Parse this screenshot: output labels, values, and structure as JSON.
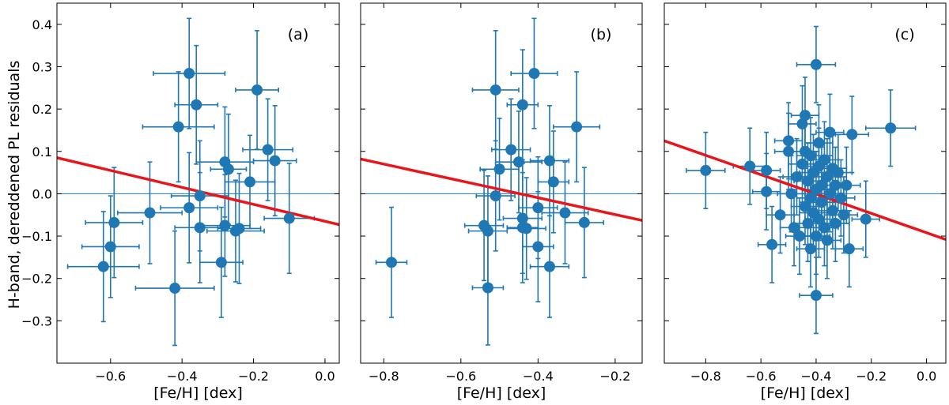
{
  "chart_data": [
    {
      "type": "scatter",
      "panel_label": "(a)",
      "xlabel": "[Fe/H] [dex]",
      "ylabel": "H-band, dereddened PL residuals",
      "xlim": [
        -0.75,
        0.04
      ],
      "ylim": [
        -0.4,
        0.45
      ],
      "xticks": [
        -0.6,
        -0.4,
        -0.2,
        0.0
      ],
      "xtick_labels": [
        "−0.6",
        "−0.4",
        "−0.2",
        "0.0"
      ],
      "yticks": [
        -0.3,
        -0.2,
        -0.1,
        0.0,
        0.1,
        0.2,
        0.3,
        0.4
      ],
      "ytick_labels": [
        "−0.3",
        "−0.2",
        "−0.1",
        "0.0",
        "0.1",
        "0.2",
        "0.3",
        "0.4"
      ],
      "show_ytick_labels": true,
      "zero_line": 0.0,
      "fit_line": {
        "x": [
          -0.75,
          0.04
        ],
        "y": [
          0.085,
          -0.073
        ]
      },
      "points": [
        {
          "x": -0.62,
          "y": -0.172,
          "xerr": 0.1,
          "yerr": 0.13
        },
        {
          "x": -0.6,
          "y": -0.125,
          "xerr": 0.08,
          "yerr": 0.12
        },
        {
          "x": -0.59,
          "y": -0.068,
          "xerr": 0.08,
          "yerr": 0.13
        },
        {
          "x": -0.49,
          "y": -0.045,
          "xerr": 0.09,
          "yerr": 0.12
        },
        {
          "x": -0.42,
          "y": -0.223,
          "xerr": 0.11,
          "yerr": 0.135
        },
        {
          "x": -0.41,
          "y": 0.158,
          "xerr": 0.1,
          "yerr": 0.13
        },
        {
          "x": -0.38,
          "y": 0.284,
          "xerr": 0.1,
          "yerr": 0.13
        },
        {
          "x": -0.38,
          "y": -0.033,
          "xerr": 0.08,
          "yerr": 0.13
        },
        {
          "x": -0.36,
          "y": 0.21,
          "xerr": 0.06,
          "yerr": 0.14
        },
        {
          "x": -0.35,
          "y": -0.005,
          "xerr": 0.08,
          "yerr": 0.13
        },
        {
          "x": -0.35,
          "y": -0.08,
          "xerr": 0.07,
          "yerr": 0.13
        },
        {
          "x": -0.29,
          "y": -0.162,
          "xerr": 0.06,
          "yerr": 0.13
        },
        {
          "x": -0.28,
          "y": 0.075,
          "xerr": 0.08,
          "yerr": 0.13
        },
        {
          "x": -0.28,
          "y": -0.075,
          "xerr": 0.07,
          "yerr": 0.12
        },
        {
          "x": -0.27,
          "y": 0.058,
          "xerr": 0.05,
          "yerr": 0.13
        },
        {
          "x": -0.25,
          "y": -0.088,
          "xerr": 0.08,
          "yerr": 0.12
        },
        {
          "x": -0.24,
          "y": -0.082,
          "xerr": 0.06,
          "yerr": 0.13
        },
        {
          "x": -0.21,
          "y": 0.028,
          "xerr": 0.07,
          "yerr": 0.11
        },
        {
          "x": -0.19,
          "y": 0.245,
          "xerr": 0.06,
          "yerr": 0.14
        },
        {
          "x": -0.16,
          "y": 0.104,
          "xerr": 0.07,
          "yerr": 0.12
        },
        {
          "x": -0.14,
          "y": 0.078,
          "xerr": 0.06,
          "yerr": 0.13
        },
        {
          "x": -0.1,
          "y": -0.058,
          "xerr": 0.07,
          "yerr": 0.13
        }
      ]
    },
    {
      "type": "scatter",
      "panel_label": "(b)",
      "xlabel": "[Fe/H] [dex]",
      "ylabel": "",
      "xlim": [
        -0.86,
        -0.13
      ],
      "ylim": [
        -0.4,
        0.45
      ],
      "xticks": [
        -0.8,
        -0.6,
        -0.4,
        -0.2
      ],
      "xtick_labels": [
        "−0.8",
        "−0.6",
        "−0.4",
        "−0.2"
      ],
      "yticks": [
        -0.3,
        -0.2,
        -0.1,
        0.0,
        0.1,
        0.2,
        0.3,
        0.4
      ],
      "ytick_labels": [],
      "show_ytick_labels": false,
      "zero_line": 0.0,
      "fit_line": {
        "x": [
          -0.86,
          -0.13
        ],
        "y": [
          0.082,
          -0.063
        ]
      },
      "points": [
        {
          "x": -0.78,
          "y": -0.162,
          "xerr": 0.04,
          "yerr": 0.13
        },
        {
          "x": -0.54,
          "y": -0.075,
          "xerr": 0.05,
          "yerr": 0.13
        },
        {
          "x": -0.53,
          "y": -0.088,
          "xerr": 0.05,
          "yerr": 0.13
        },
        {
          "x": -0.53,
          "y": -0.222,
          "xerr": 0.04,
          "yerr": 0.135
        },
        {
          "x": -0.51,
          "y": 0.245,
          "xerr": 0.06,
          "yerr": 0.14
        },
        {
          "x": -0.51,
          "y": -0.005,
          "xerr": 0.05,
          "yerr": 0.13
        },
        {
          "x": -0.5,
          "y": 0.058,
          "xerr": 0.05,
          "yerr": 0.12
        },
        {
          "x": -0.47,
          "y": 0.104,
          "xerr": 0.05,
          "yerr": 0.12
        },
        {
          "x": -0.45,
          "y": 0.075,
          "xerr": 0.06,
          "yerr": 0.12
        },
        {
          "x": -0.44,
          "y": 0.21,
          "xerr": 0.04,
          "yerr": 0.13
        },
        {
          "x": -0.44,
          "y": -0.058,
          "xerr": 0.05,
          "yerr": 0.13
        },
        {
          "x": -0.44,
          "y": -0.08,
          "xerr": 0.04,
          "yerr": 0.13
        },
        {
          "x": -0.43,
          "y": -0.082,
          "xerr": 0.05,
          "yerr": 0.12
        },
        {
          "x": -0.41,
          "y": 0.284,
          "xerr": 0.06,
          "yerr": 0.13
        },
        {
          "x": -0.4,
          "y": -0.033,
          "xerr": 0.05,
          "yerr": 0.12
        },
        {
          "x": -0.4,
          "y": -0.125,
          "xerr": 0.04,
          "yerr": 0.13
        },
        {
          "x": -0.37,
          "y": 0.078,
          "xerr": 0.05,
          "yerr": 0.13
        },
        {
          "x": -0.37,
          "y": -0.172,
          "xerr": 0.05,
          "yerr": 0.12
        },
        {
          "x": -0.36,
          "y": 0.028,
          "xerr": 0.04,
          "yerr": 0.12
        },
        {
          "x": -0.33,
          "y": -0.045,
          "xerr": 0.06,
          "yerr": 0.12
        },
        {
          "x": -0.3,
          "y": 0.158,
          "xerr": 0.06,
          "yerr": 0.13
        },
        {
          "x": -0.28,
          "y": -0.068,
          "xerr": 0.05,
          "yerr": 0.13
        }
      ]
    },
    {
      "type": "scatter",
      "panel_label": "(c)",
      "xlabel": "[Fe/H] [dex]",
      "ylabel": "",
      "xlim": [
        -0.95,
        0.07
      ],
      "ylim": [
        -0.4,
        0.45
      ],
      "xticks": [
        -0.8,
        -0.6,
        -0.4,
        -0.2,
        0.0
      ],
      "xtick_labels": [
        "−0.8",
        "−0.6",
        "−0.4",
        "−0.2",
        "0.0"
      ],
      "yticks": [
        -0.3,
        -0.2,
        -0.1,
        0.0,
        0.1,
        0.2,
        0.3,
        0.4
      ],
      "ytick_labels": [],
      "show_ytick_labels": false,
      "zero_line": 0.0,
      "fit_line": {
        "x": [
          -0.95,
          0.07
        ],
        "y": [
          0.125,
          -0.108
        ]
      },
      "points": [
        {
          "x": -0.8,
          "y": 0.055,
          "xerr": 0.07,
          "yerr": 0.09
        },
        {
          "x": -0.64,
          "y": 0.065,
          "xerr": 0.06,
          "yerr": 0.09
        },
        {
          "x": -0.58,
          "y": 0.055,
          "xerr": 0.05,
          "yerr": 0.09
        },
        {
          "x": -0.58,
          "y": 0.005,
          "xerr": 0.05,
          "yerr": 0.09
        },
        {
          "x": -0.56,
          "y": -0.12,
          "xerr": 0.05,
          "yerr": 0.09
        },
        {
          "x": -0.53,
          "y": -0.05,
          "xerr": 0.05,
          "yerr": 0.09
        },
        {
          "x": -0.5,
          "y": 0.125,
          "xerr": 0.05,
          "yerr": 0.09
        },
        {
          "x": -0.5,
          "y": 0.1,
          "xerr": 0.05,
          "yerr": 0.09
        },
        {
          "x": -0.49,
          "y": 0.0,
          "xerr": 0.05,
          "yerr": 0.09
        },
        {
          "x": -0.48,
          "y": -0.08,
          "xerr": 0.05,
          "yerr": 0.09
        },
        {
          "x": -0.47,
          "y": 0.04,
          "xerr": 0.05,
          "yerr": 0.09
        },
        {
          "x": -0.46,
          "y": -0.1,
          "xerr": 0.05,
          "yerr": 0.09
        },
        {
          "x": -0.45,
          "y": 0.165,
          "xerr": 0.05,
          "yerr": 0.09
        },
        {
          "x": -0.45,
          "y": 0.07,
          "xerr": 0.05,
          "yerr": 0.09
        },
        {
          "x": -0.44,
          "y": 0.185,
          "xerr": 0.05,
          "yerr": 0.09
        },
        {
          "x": -0.44,
          "y": 0.1,
          "xerr": 0.05,
          "yerr": 0.09
        },
        {
          "x": -0.44,
          "y": -0.03,
          "xerr": 0.05,
          "yerr": 0.09
        },
        {
          "x": -0.43,
          "y": 0.03,
          "xerr": 0.05,
          "yerr": 0.09
        },
        {
          "x": -0.43,
          "y": -0.07,
          "xerr": 0.05,
          "yerr": 0.09
        },
        {
          "x": -0.42,
          "y": 0.09,
          "xerr": 0.05,
          "yerr": 0.09
        },
        {
          "x": -0.42,
          "y": -0.01,
          "xerr": 0.05,
          "yerr": 0.09
        },
        {
          "x": -0.42,
          "y": -0.13,
          "xerr": 0.05,
          "yerr": 0.09
        },
        {
          "x": -0.41,
          "y": 0.05,
          "xerr": 0.05,
          "yerr": 0.09
        },
        {
          "x": -0.41,
          "y": -0.045,
          "xerr": 0.05,
          "yerr": 0.09
        },
        {
          "x": -0.4,
          "y": 0.305,
          "xerr": 0.07,
          "yerr": 0.09
        },
        {
          "x": -0.4,
          "y": 0.01,
          "xerr": 0.05,
          "yerr": 0.09
        },
        {
          "x": -0.4,
          "y": -0.1,
          "xerr": 0.05,
          "yerr": 0.09
        },
        {
          "x": -0.4,
          "y": -0.24,
          "xerr": 0.06,
          "yerr": 0.09
        },
        {
          "x": -0.39,
          "y": 0.12,
          "xerr": 0.05,
          "yerr": 0.09
        },
        {
          "x": -0.39,
          "y": 0.065,
          "xerr": 0.05,
          "yerr": 0.09
        },
        {
          "x": -0.39,
          "y": -0.06,
          "xerr": 0.05,
          "yerr": 0.09
        },
        {
          "x": -0.38,
          "y": 0.02,
          "xerr": 0.05,
          "yerr": 0.09
        },
        {
          "x": -0.38,
          "y": -0.02,
          "xerr": 0.05,
          "yerr": 0.09
        },
        {
          "x": -0.37,
          "y": 0.08,
          "xerr": 0.05,
          "yerr": 0.09
        },
        {
          "x": -0.37,
          "y": -0.08,
          "xerr": 0.05,
          "yerr": 0.09
        },
        {
          "x": -0.36,
          "y": 0.04,
          "xerr": 0.05,
          "yerr": 0.09
        },
        {
          "x": -0.36,
          "y": -0.11,
          "xerr": 0.05,
          "yerr": 0.09
        },
        {
          "x": -0.35,
          "y": 0.0,
          "xerr": 0.05,
          "yerr": 0.09
        },
        {
          "x": -0.35,
          "y": 0.145,
          "xerr": 0.05,
          "yerr": 0.09
        },
        {
          "x": -0.34,
          "y": -0.04,
          "xerr": 0.05,
          "yerr": 0.09
        },
        {
          "x": -0.34,
          "y": 0.06,
          "xerr": 0.05,
          "yerr": 0.09
        },
        {
          "x": -0.33,
          "y": 0.02,
          "xerr": 0.05,
          "yerr": 0.09
        },
        {
          "x": -0.33,
          "y": -0.07,
          "xerr": 0.05,
          "yerr": 0.09
        },
        {
          "x": -0.32,
          "y": 0.05,
          "xerr": 0.05,
          "yerr": 0.09
        },
        {
          "x": -0.31,
          "y": -0.01,
          "xerr": 0.05,
          "yerr": 0.09
        },
        {
          "x": -0.3,
          "y": -0.05,
          "xerr": 0.05,
          "yerr": 0.09
        },
        {
          "x": -0.29,
          "y": 0.02,
          "xerr": 0.05,
          "yerr": 0.09
        },
        {
          "x": -0.28,
          "y": -0.13,
          "xerr": 0.05,
          "yerr": 0.09
        },
        {
          "x": -0.27,
          "y": 0.14,
          "xerr": 0.06,
          "yerr": 0.09
        },
        {
          "x": -0.22,
          "y": -0.06,
          "xerr": 0.05,
          "yerr": 0.09
        },
        {
          "x": -0.13,
          "y": 0.155,
          "xerr": 0.09,
          "yerr": 0.09
        }
      ]
    }
  ]
}
